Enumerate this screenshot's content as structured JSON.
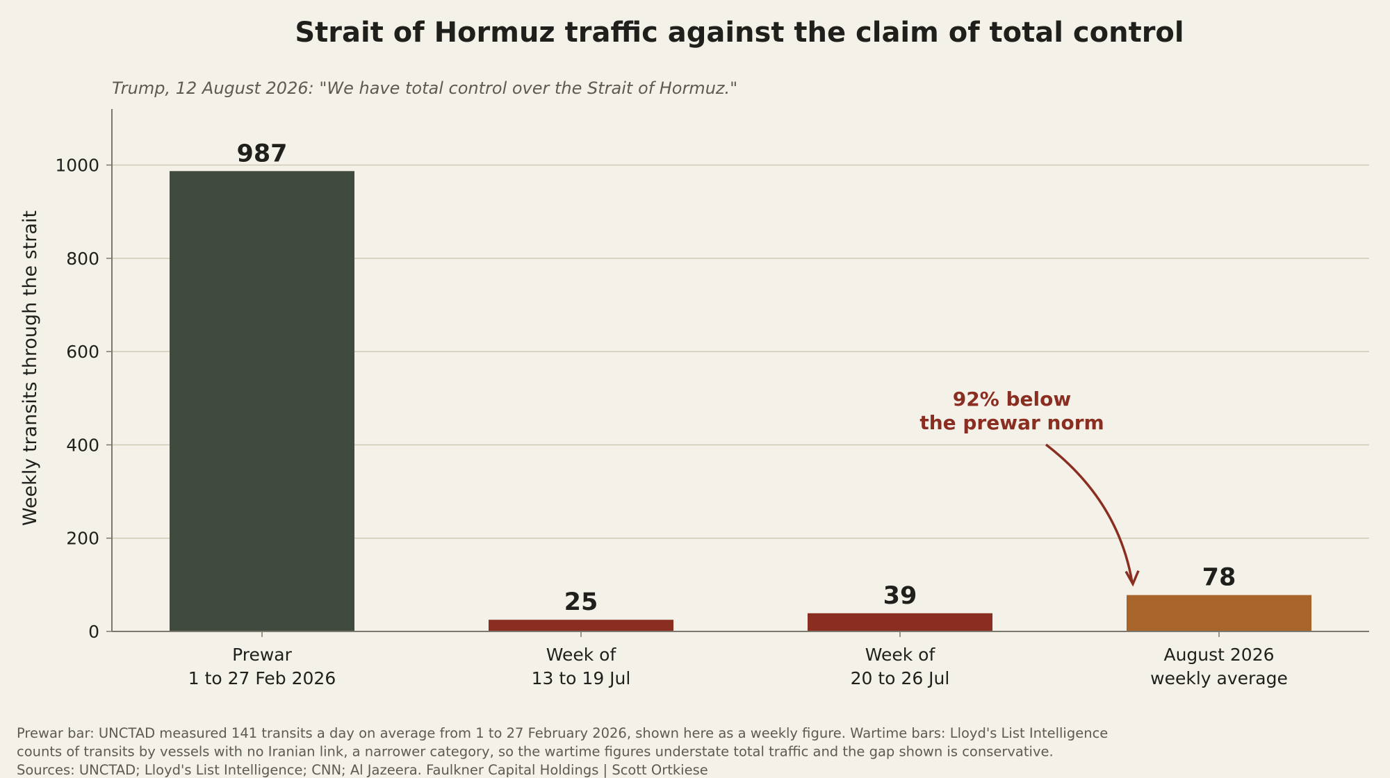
{
  "chart_data": {
    "type": "bar",
    "title": "Strait of Hormuz traffic against the claim of total control",
    "subtitle": "Trump, 12 August 2026: \"We have total control over the Strait of Hormuz.\"",
    "ylabel": "Weekly transits through the strait",
    "xlabel": "",
    "ylim": [
      0,
      1120
    ],
    "yticks": [
      0,
      200,
      400,
      600,
      800,
      1000
    ],
    "grid": "horizontal",
    "categories": [
      [
        "Prewar",
        "1 to 27 Feb 2026"
      ],
      [
        "Week of",
        "13 to 19 Jul"
      ],
      [
        "Week of",
        "20 to 26 Jul"
      ],
      [
        "August 2026",
        "weekly average"
      ]
    ],
    "values": [
      987,
      25,
      39,
      78
    ],
    "value_labels": [
      "987",
      "25",
      "39",
      "78"
    ],
    "bar_colors": [
      "#414a3e",
      "#8b2e22",
      "#8b2e22",
      "#a8642a"
    ],
    "annotation": {
      "lines": [
        "92% below",
        "the prewar norm"
      ],
      "target_category": 3,
      "color": "#8b2e22"
    }
  },
  "footer": {
    "lines": [
      "Prewar bar: UNCTAD measured 141 transits a day on average from 1 to 27 February 2026, shown here as a weekly figure. Wartime bars: Lloyd's List Intelligence",
      "counts of transits by vessels with no Iranian link, a narrower category, so the wartime figures understate total traffic and the gap shown is conservative.",
      "Sources: UNCTAD; Lloyd's List Intelligence; CNN; Al Jazeera.   Faulkner Capital Holdings | Scott Ortkiese"
    ]
  },
  "colors": {
    "background": "#f3f1e8",
    "grid": "#cfcbb4",
    "axis": "#7a776c",
    "text": "#1f1f1c"
  }
}
